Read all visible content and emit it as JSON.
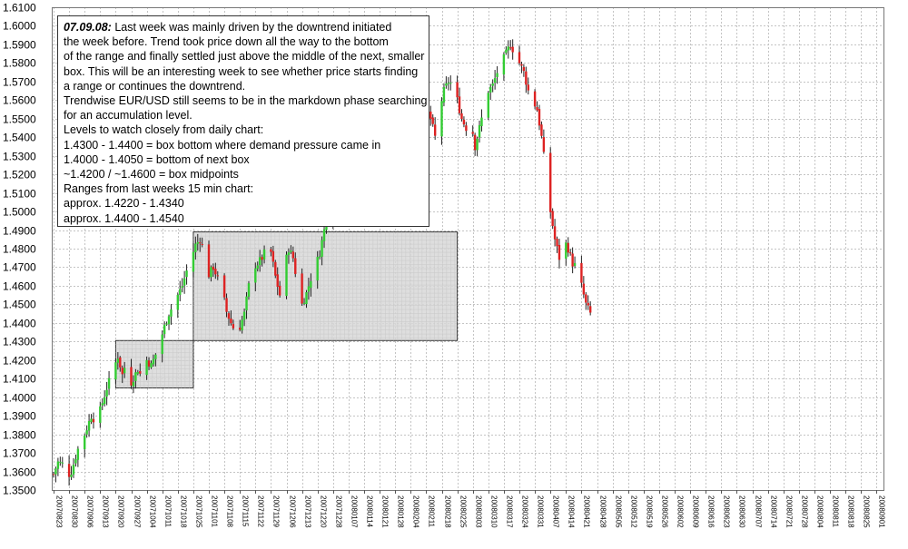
{
  "chart_data": {
    "type": "candlestick",
    "y_ticks": [
      "1.3500",
      "1.3600",
      "1.3700",
      "1.3800",
      "1.3900",
      "1.4000",
      "1.4100",
      "1.4200",
      "1.4300",
      "1.4400",
      "1.4500",
      "1.4600",
      "1.4700",
      "1.4800",
      "1.4900",
      "1.5000",
      "1.5100",
      "1.5200",
      "1.5300",
      "1.5400",
      "1.5500",
      "1.5600",
      "1.5700",
      "1.5800",
      "1.5900",
      "1.6000",
      "1.6100"
    ],
    "ylim": [
      1.35,
      1.61
    ],
    "x_ticks": [
      "20070823",
      "20070830",
      "20070906",
      "20070913",
      "20070920",
      "20070927",
      "20071004",
      "20071011",
      "20071018",
      "20071025",
      "20071101",
      "20071108",
      "20071115",
      "20071122",
      "20071129",
      "20071206",
      "20071213",
      "20071220",
      "20071228",
      "20080107",
      "20080114",
      "20080121",
      "20080128",
      "20080204",
      "20080211",
      "20080218",
      "20080225",
      "20080303",
      "20080310",
      "20080317",
      "20080324",
      "20080331",
      "20080407",
      "20080414",
      "20080421",
      "20080428",
      "20080505",
      "20080512",
      "20080519",
      "20080526",
      "20080602",
      "20080609",
      "20080616",
      "20080623",
      "20080630",
      "20080707",
      "20080714",
      "20080721",
      "20080728",
      "20080804",
      "20080811",
      "20080818",
      "20080825",
      "20080901",
      "20080905"
    ],
    "grid": true,
    "legend": "none",
    "colors": {
      "up": "#33cc33",
      "down": "#dd2222",
      "wick": "#222222",
      "box_fill": "#d8d8d8",
      "box_border": "#333333"
    },
    "boxes": [
      {
        "name": "smaller box",
        "from": "20070920",
        "to": "20071025",
        "low": 1.405,
        "high": 1.4305
      },
      {
        "name": "next box",
        "from": "20071025",
        "to": "20080225",
        "low": 1.4305,
        "high": 1.489
      }
    ],
    "waypoints": [
      {
        "d": 0,
        "p": 1.3585
      },
      {
        "d": 2,
        "p": 1.365
      },
      {
        "d": 4,
        "p": 1.364
      },
      {
        "d": 6,
        "p": 1.357
      },
      {
        "d": 8,
        "p": 1.36
      },
      {
        "d": 11,
        "p": 1.372
      },
      {
        "d": 14,
        "p": 1.38
      },
      {
        "d": 17,
        "p": 1.39
      },
      {
        "d": 19,
        "p": 1.387
      },
      {
        "d": 21,
        "p": 1.393
      },
      {
        "d": 24,
        "p": 1.405
      },
      {
        "d": 27,
        "p": 1.415
      },
      {
        "d": 29,
        "p": 1.422
      },
      {
        "d": 31,
        "p": 1.412
      },
      {
        "d": 33,
        "p": 1.42
      },
      {
        "d": 35,
        "p": 1.408
      },
      {
        "d": 38,
        "p": 1.415
      },
      {
        "d": 40,
        "p": 1.41
      },
      {
        "d": 42,
        "p": 1.42
      },
      {
        "d": 44,
        "p": 1.417
      },
      {
        "d": 46,
        "p": 1.423
      },
      {
        "d": 48,
        "p": 1.43
      },
      {
        "d": 50,
        "p": 1.438
      },
      {
        "d": 52,
        "p": 1.445
      },
      {
        "d": 54,
        "p": 1.45
      },
      {
        "d": 56,
        "p": 1.455
      },
      {
        "d": 58,
        "p": 1.46
      },
      {
        "d": 60,
        "p": 1.468
      },
      {
        "d": 62,
        "p": 1.475
      },
      {
        "d": 64,
        "p": 1.482
      },
      {
        "d": 66,
        "p": 1.485
      },
      {
        "d": 68,
        "p": 1.478
      },
      {
        "d": 70,
        "p": 1.466
      },
      {
        "d": 72,
        "p": 1.47
      },
      {
        "d": 74,
        "p": 1.464
      },
      {
        "d": 76,
        "p": 1.458
      },
      {
        "d": 78,
        "p": 1.446
      },
      {
        "d": 80,
        "p": 1.44
      },
      {
        "d": 82,
        "p": 1.435
      },
      {
        "d": 84,
        "p": 1.438
      },
      {
        "d": 86,
        "p": 1.445
      },
      {
        "d": 88,
        "p": 1.46
      },
      {
        "d": 90,
        "p": 1.47
      },
      {
        "d": 92,
        "p": 1.472
      },
      {
        "d": 94,
        "p": 1.475
      },
      {
        "d": 96,
        "p": 1.48
      },
      {
        "d": 98,
        "p": 1.478
      },
      {
        "d": 100,
        "p": 1.465
      },
      {
        "d": 102,
        "p": 1.455
      },
      {
        "d": 104,
        "p": 1.47
      },
      {
        "d": 106,
        "p": 1.48
      },
      {
        "d": 108,
        "p": 1.475
      },
      {
        "d": 110,
        "p": 1.46
      },
      {
        "d": 112,
        "p": 1.45
      },
      {
        "d": 114,
        "p": 1.456
      },
      {
        "d": 116,
        "p": 1.464
      },
      {
        "d": 118,
        "p": 1.47
      },
      {
        "d": 120,
        "p": 1.478
      },
      {
        "d": 122,
        "p": 1.49
      },
      {
        "d": 124,
        "p": 1.502
      },
      {
        "d": 126,
        "p": 1.516
      },
      {
        "d": 128,
        "p": 1.53
      },
      {
        "d": 130,
        "p": 1.555
      },
      {
        "d": 132,
        "p": 1.565
      },
      {
        "d": 134,
        "p": 1.57
      },
      {
        "d": 136,
        "p": 1.555
      },
      {
        "d": 138,
        "p": 1.562
      },
      {
        "d": 140,
        "p": 1.578
      },
      {
        "d": 142,
        "p": 1.575
      },
      {
        "d": 144,
        "p": 1.565
      },
      {
        "d": 146,
        "p": 1.56
      },
      {
        "d": 148,
        "p": 1.57
      },
      {
        "d": 150,
        "p": 1.58
      },
      {
        "d": 152,
        "p": 1.582
      },
      {
        "d": 154,
        "p": 1.59
      },
      {
        "d": 156,
        "p": 1.585
      },
      {
        "d": 158,
        "p": 1.595
      },
      {
        "d": 160,
        "p": 1.57
      },
      {
        "d": 162,
        "p": 1.562
      },
      {
        "d": 164,
        "p": 1.55
      },
      {
        "d": 166,
        "p": 1.545
      },
      {
        "d": 168,
        "p": 1.555
      },
      {
        "d": 170,
        "p": 1.55
      },
      {
        "d": 172,
        "p": 1.54
      },
      {
        "d": 174,
        "p": 1.555
      },
      {
        "d": 176,
        "p": 1.565
      },
      {
        "d": 178,
        "p": 1.57
      },
      {
        "d": 180,
        "p": 1.568
      },
      {
        "d": 182,
        "p": 1.56
      },
      {
        "d": 184,
        "p": 1.55
      },
      {
        "d": 186,
        "p": 1.545
      },
      {
        "d": 188,
        "p": 1.55
      },
      {
        "d": 190,
        "p": 1.535
      },
      {
        "d": 192,
        "p": 1.545
      },
      {
        "d": 194,
        "p": 1.555
      },
      {
        "d": 196,
        "p": 1.565
      },
      {
        "d": 198,
        "p": 1.568
      },
      {
        "d": 200,
        "p": 1.575
      },
      {
        "d": 202,
        "p": 1.58
      },
      {
        "d": 204,
        "p": 1.585
      },
      {
        "d": 206,
        "p": 1.59
      },
      {
        "d": 208,
        "p": 1.585
      },
      {
        "d": 210,
        "p": 1.58
      },
      {
        "d": 212,
        "p": 1.575
      },
      {
        "d": 214,
        "p": 1.565
      },
      {
        "d": 216,
        "p": 1.56
      },
      {
        "d": 218,
        "p": 1.555
      },
      {
        "d": 220,
        "p": 1.54
      },
      {
        "d": 222,
        "p": 1.52
      },
      {
        "d": 224,
        "p": 1.5
      },
      {
        "d": 226,
        "p": 1.485
      },
      {
        "d": 228,
        "p": 1.475
      },
      {
        "d": 230,
        "p": 1.485
      },
      {
        "d": 232,
        "p": 1.48
      },
      {
        "d": 234,
        "p": 1.472
      },
      {
        "d": 236,
        "p": 1.47
      },
      {
        "d": 238,
        "p": 1.46
      },
      {
        "d": 240,
        "p": 1.45
      },
      {
        "d": 242,
        "p": 1.445
      },
      {
        "d": 243,
        "p": 1.43
      },
      {
        "d": 244,
        "p": 1.425
      }
    ]
  },
  "annotation": {
    "date": "07.09.08:",
    "first_line": "Last week was mainly driven by the downtrend initiated",
    "lines": [
      "the week before. Trend took price down all the way to the bottom",
      "of the range and finally settled just above the middle of the next, smaller",
      "box. This will be an interesting week to see whether price starts finding",
      "a range or continues the downtrend.",
      "Trendwise EUR/USD still seems to be in the markdown phase searching",
      "for an accumulation level.",
      "Levels to watch closely from daily chart:",
      "1.4300 - 1.4400 = box bottom where demand pressure came in",
      "1.4000 - 1.4050 = bottom of next box",
      "~1.4200 / ~1.4600 = box midpoints",
      "Ranges from last weeks 15 min chart:",
      "approx. 1.4220 - 1.4340",
      "approx. 1.4400 - 1.4540"
    ]
  }
}
